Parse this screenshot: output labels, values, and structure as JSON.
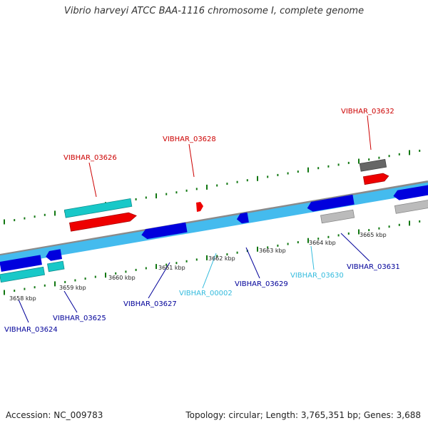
{
  "title": "Vibrio harveyi ATCC BAA-1116 chromosome I, complete genome",
  "footer": {
    "accession": "Accession: NC_009783",
    "summary": "Topology: circular; Length: 3,765,351 bp; Genes: 3,688"
  },
  "colors": {
    "red": "#ee0000",
    "cyan": "#18c8c8",
    "light_blue": "#44bbee",
    "blue": "#0000dd",
    "dark_gray": "#666666",
    "light_gray": "#bbbbbb",
    "tick_green": "#117711",
    "label_red": "#cc0000",
    "label_blue": "#000099",
    "label_cyan": "#33bbdd"
  },
  "scale_labels": [
    "3658 kbp",
    "3659 kbp",
    "3660 kbp",
    "3661 kbp",
    "3662 kbp",
    "3663 kbp",
    "3664 kbp",
    "3665 kbp"
  ],
  "gene_labels": [
    {
      "id": "VIBHAR_03626",
      "color": "red"
    },
    {
      "id": "VIBHAR_03628",
      "color": "red"
    },
    {
      "id": "VIBHAR_03632",
      "color": "red"
    },
    {
      "id": "VIBHAR_03624",
      "color": "blue"
    },
    {
      "id": "VIBHAR_03625",
      "color": "blue"
    },
    {
      "id": "VIBHAR_03627",
      "color": "blue"
    },
    {
      "id": "VIBHAR_00002",
      "color": "cyan"
    },
    {
      "id": "VIBHAR_03629",
      "color": "blue"
    },
    {
      "id": "VIBHAR_03630",
      "color": "cyan"
    },
    {
      "id": "VIBHAR_03631",
      "color": "blue"
    }
  ]
}
